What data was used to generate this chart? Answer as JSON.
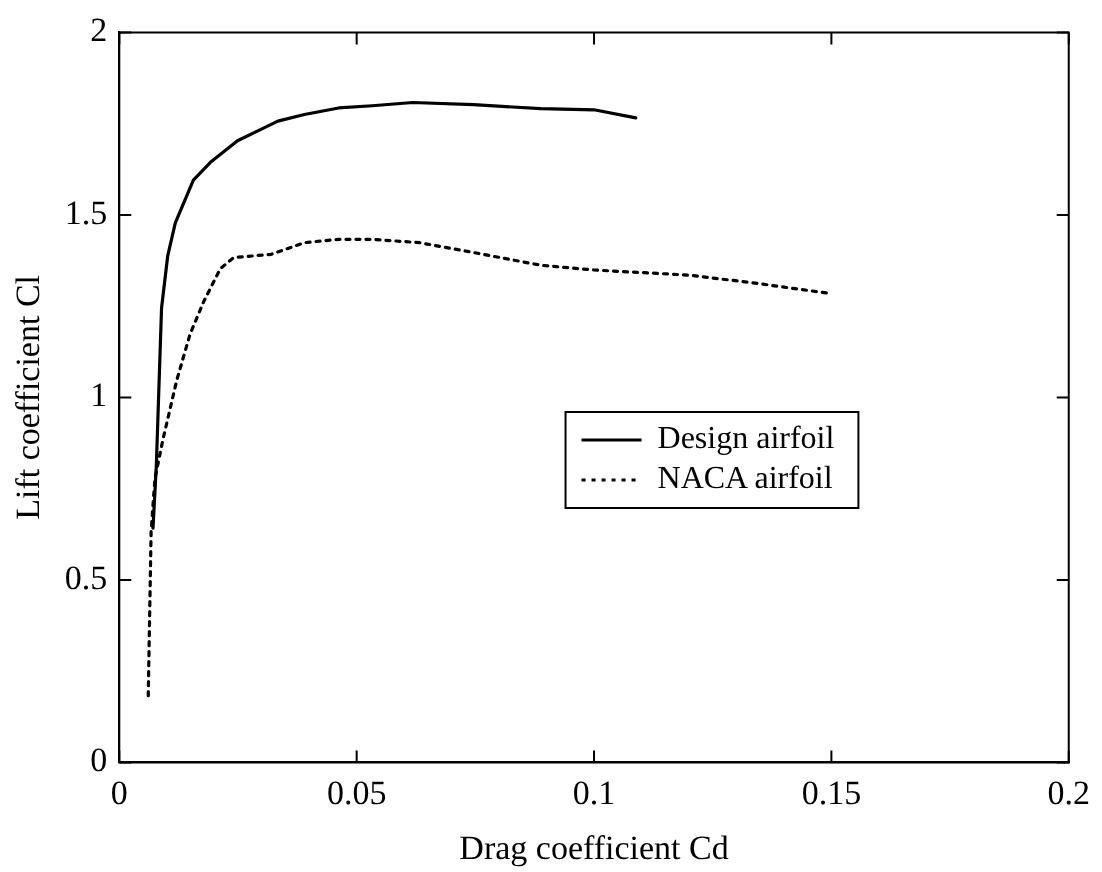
{
  "chart_data": {
    "type": "line",
    "xlabel": "Drag coefficient Cd",
    "ylabel": "Lift coefficient Cl",
    "xlim": [
      0,
      0.2
    ],
    "ylim": [
      0,
      2
    ],
    "xticks": [
      0,
      0.05,
      0.1,
      0.15,
      0.2
    ],
    "yticks": [
      0,
      0.5,
      1,
      1.5,
      2
    ],
    "grid": false,
    "legend": "right",
    "marker": "none",
    "series": [
      {
        "name": "Design airfoil",
        "color": "#000000",
        "line_style": "solid",
        "x": [
          0.0071,
          0.0078,
          0.0089,
          0.0102,
          0.0118,
          0.0156,
          0.0192,
          0.0249,
          0.0334,
          0.039,
          0.0462,
          0.0533,
          0.0618,
          0.0746,
          0.0888,
          0.1,
          0.1088
        ],
        "values": [
          0.642,
          0.813,
          1.245,
          1.388,
          1.478,
          1.595,
          1.644,
          1.703,
          1.757,
          1.775,
          1.793,
          1.799,
          1.808,
          1.802,
          1.791,
          1.788,
          1.766
        ]
      },
      {
        "name": "NACA airfoil",
        "color": "#000000",
        "line_style": "dotted",
        "x": [
          0.0061,
          0.0067,
          0.0075,
          0.0092,
          0.0121,
          0.0149,
          0.0178,
          0.0213,
          0.0241,
          0.032,
          0.039,
          0.0462,
          0.0533,
          0.0632,
          0.0746,
          0.0888,
          0.1,
          0.12,
          0.134,
          0.149
        ],
        "values": [
          0.183,
          0.633,
          0.777,
          0.885,
          1.047,
          1.173,
          1.263,
          1.353,
          1.383,
          1.392,
          1.424,
          1.433,
          1.433,
          1.424,
          1.397,
          1.362,
          1.349,
          1.335,
          1.313,
          1.286
        ]
      }
    ]
  }
}
